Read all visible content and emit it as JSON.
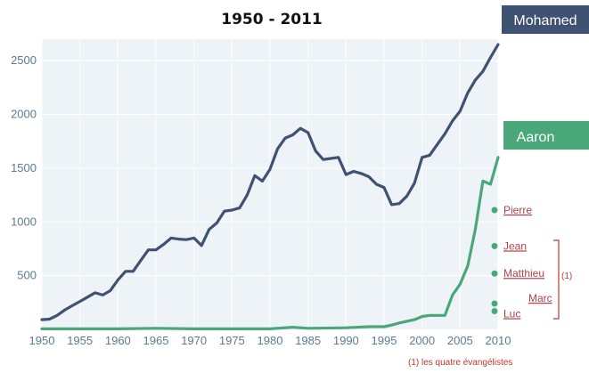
{
  "chart_data": {
    "type": "line",
    "title": "1950 - 2011",
    "x_ticks": [
      1950,
      1955,
      1960,
      1965,
      1970,
      1975,
      1980,
      1985,
      1990,
      1995,
      2000,
      2005,
      2010
    ],
    "y_ticks": [
      500,
      1000,
      1500,
      2000,
      2500
    ],
    "xlim": [
      1950,
      2010
    ],
    "ylim": [
      0,
      2700
    ],
    "series": [
      {
        "name": "Mohamed",
        "color": "#3f5272",
        "x": [
          1950,
          1951,
          1952,
          1953,
          1954,
          1955,
          1956,
          1957,
          1958,
          1959,
          1960,
          1961,
          1962,
          1963,
          1964,
          1965,
          1966,
          1967,
          1968,
          1969,
          1970,
          1971,
          1972,
          1973,
          1974,
          1975,
          1976,
          1977,
          1978,
          1979,
          1980,
          1981,
          1982,
          1983,
          1984,
          1985,
          1986,
          1987,
          1988,
          1989,
          1990,
          1991,
          1992,
          1993,
          1994,
          1995,
          1996,
          1997,
          1998,
          1999,
          2000,
          2001,
          2002,
          2003,
          2004,
          2005,
          2006,
          2007,
          2008,
          2009,
          2010
        ],
        "y": [
          90,
          95,
          130,
          180,
          220,
          260,
          300,
          340,
          320,
          360,
          460,
          540,
          540,
          640,
          740,
          740,
          790,
          850,
          840,
          835,
          850,
          780,
          930,
          990,
          1100,
          1110,
          1130,
          1250,
          1430,
          1380,
          1490,
          1680,
          1780,
          1810,
          1870,
          1830,
          1660,
          1580,
          1590,
          1600,
          1440,
          1470,
          1450,
          1420,
          1350,
          1320,
          1160,
          1170,
          1240,
          1360,
          1600,
          1620,
          1720,
          1820,
          1940,
          2030,
          2200,
          2320,
          2400,
          2530,
          2650
        ]
      },
      {
        "name": "Aaron",
        "color": "#4aa77a",
        "x": [
          1950,
          1955,
          1960,
          1965,
          1970,
          1975,
          1980,
          1983,
          1985,
          1990,
          1993,
          1995,
          1996,
          1997,
          1998,
          1999,
          2000,
          2001,
          2002,
          2003,
          2004,
          2005,
          2006,
          2007,
          2008,
          2009,
          2010
        ],
        "y": [
          5,
          5,
          5,
          10,
          5,
          5,
          5,
          20,
          10,
          15,
          25,
          25,
          40,
          60,
          75,
          90,
          120,
          130,
          130,
          130,
          320,
          420,
          590,
          930,
          1380,
          1350,
          1600
        ]
      }
    ],
    "markers": [
      {
        "label": "Pierre",
        "x": 2010,
        "y": 1110
      },
      {
        "label": "Jean",
        "x": 2010,
        "y": 775
      },
      {
        "label": "Matthieu",
        "x": 2010,
        "y": 520
      },
      {
        "label": "Marc",
        "x": 2010,
        "y": 240
      },
      {
        "label": "Luc",
        "x": 2010,
        "y": 170
      }
    ],
    "marker_color": "#4aa77a",
    "bracket_label": "(1)",
    "footnote": "(1) les quatre évangélistes"
  }
}
